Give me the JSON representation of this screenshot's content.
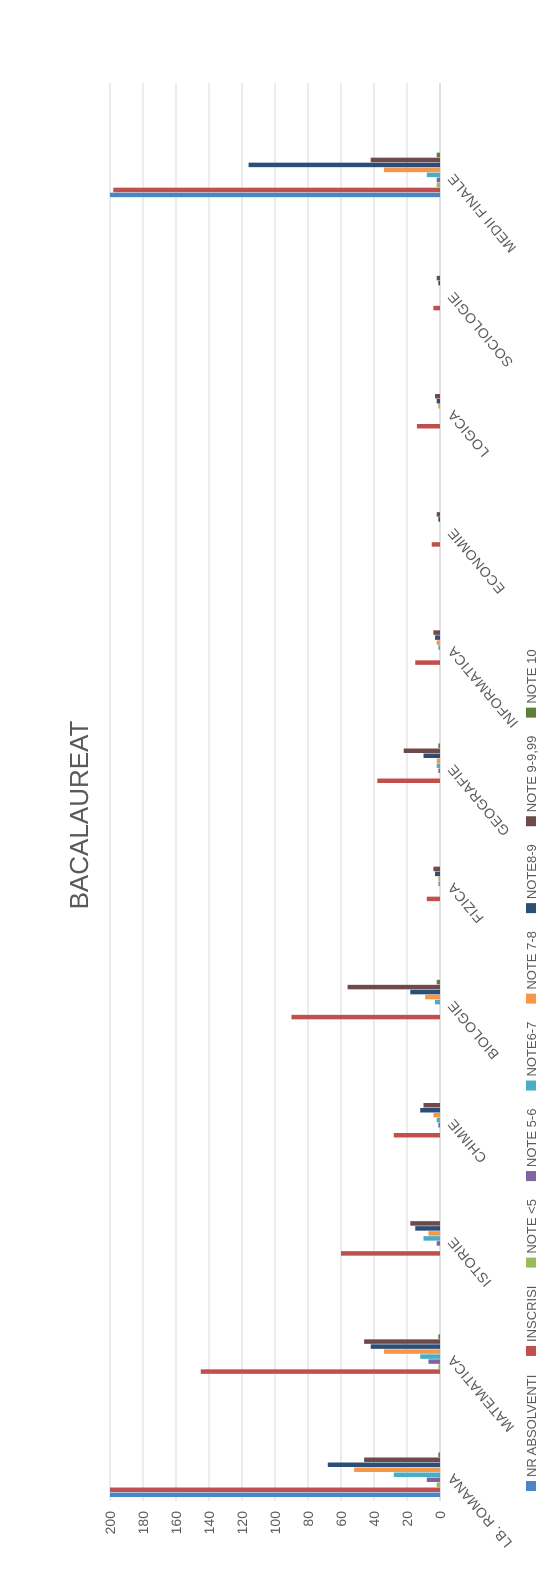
{
  "chart_data": {
    "type": "bar",
    "title": "BACALAUREAT",
    "orientation": "vertical-bars, page rotated 90 degrees",
    "ylim": [
      0,
      200
    ],
    "yticks": [
      0,
      20,
      40,
      60,
      80,
      100,
      120,
      140,
      160,
      180,
      200
    ],
    "grid": true,
    "legend_position": "bottom",
    "categories": [
      "LB. ROMANA",
      "MATEMATICA",
      "ISTORIE",
      "CHIMIE",
      "BIOLOGIE",
      "FIZICA",
      "GEOGRAFIE",
      "INFORMATICA",
      "ECONOMIE",
      "LOGICA",
      "SOCIOLOGIE",
      "MEDII FINALE"
    ],
    "series": [
      {
        "name": "NR ABSOLVENTI",
        "color": "#4a86c5",
        "values": [
          200,
          0,
          0,
          0,
          0,
          0,
          0,
          0,
          0,
          0,
          0,
          200
        ]
      },
      {
        "name": "INSCRISI",
        "color": "#c0504d",
        "values": [
          200,
          145,
          60,
          28,
          90,
          8,
          38,
          15,
          5,
          14,
          4,
          198
        ]
      },
      {
        "name": "NOTE <5",
        "color": "#9bbb59",
        "values": [
          2,
          1,
          0,
          0,
          0,
          0,
          0,
          0,
          0,
          0,
          0,
          2
        ]
      },
      {
        "name": "NOTE 5-6",
        "color": "#8064a2",
        "values": [
          8,
          7,
          2,
          1,
          0,
          0,
          1,
          0,
          0,
          0,
          0,
          2
        ]
      },
      {
        "name": "NOTE6-7",
        "color": "#4bacc6",
        "values": [
          28,
          12,
          10,
          2,
          3,
          1,
          2,
          1,
          0,
          0,
          0,
          8
        ]
      },
      {
        "name": "NOTE 7-8",
        "color": "#f79646",
        "values": [
          52,
          34,
          7,
          4,
          9,
          1,
          2,
          2,
          0,
          1,
          0,
          34
        ]
      },
      {
        "name": "NOTE8-9",
        "color": "#2c4d75",
        "values": [
          68,
          42,
          15,
          12,
          18,
          3,
          10,
          3,
          1,
          2,
          1,
          116
        ]
      },
      {
        "name": "NOTE 9-9,99",
        "color": "#6f4a4a",
        "values": [
          46,
          46,
          18,
          10,
          56,
          4,
          22,
          4,
          2,
          3,
          2,
          42
        ]
      },
      {
        "name": "NOTE 10",
        "color": "#5e7f3a",
        "values": [
          1,
          1,
          0,
          0,
          2,
          0,
          1,
          0,
          0,
          0,
          0,
          2
        ]
      }
    ]
  }
}
